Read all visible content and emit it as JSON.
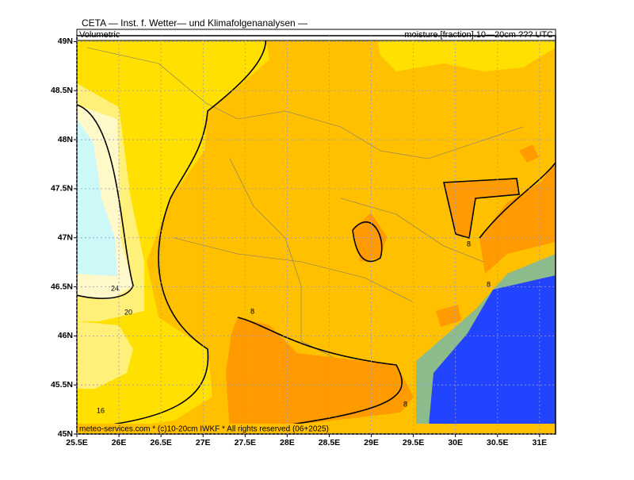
{
  "map": {
    "title": "CETA — Inst. f. Wetter— und Klimafolgenanalysen —",
    "left_label": "Volumetric",
    "right_label": "moisture.[fraction].10—20cm ??? UTC",
    "footer": "meteo-services.com * (c)10-20cm IWKF * All rights reserved (06+2025)",
    "xlim": [
      25.5,
      31.19
    ],
    "ylim": [
      45,
      49.06
    ],
    "lon_ticks": [
      {
        "value": 25.5,
        "label": "25.5E"
      },
      {
        "value": 26,
        "label": "26E"
      },
      {
        "value": 26.5,
        "label": "26.5E"
      },
      {
        "value": 27,
        "label": "27E"
      },
      {
        "value": 27.5,
        "label": "27.5E"
      },
      {
        "value": 28,
        "label": "28E"
      },
      {
        "value": 28.5,
        "label": "28.5E"
      },
      {
        "value": 29,
        "label": "29E"
      },
      {
        "value": 29.5,
        "label": "29.5E"
      },
      {
        "value": 30,
        "label": "30E"
      },
      {
        "value": 30.5,
        "label": "30.5E"
      },
      {
        "value": 31,
        "label": "31E"
      }
    ],
    "lat_ticks": [
      {
        "value": 45,
        "label": "45N"
      },
      {
        "value": 45.5,
        "label": "45.5N"
      },
      {
        "value": 46,
        "label": "46N"
      },
      {
        "value": 46.5,
        "label": "46.5N"
      },
      {
        "value": 47,
        "label": "47N"
      },
      {
        "value": 47.5,
        "label": "47.5N"
      },
      {
        "value": 48,
        "label": "48N"
      },
      {
        "value": 48.5,
        "label": "48.5N"
      },
      {
        "value": 49,
        "label": "49N"
      }
    ],
    "contour_labels": [
      "24",
      "20",
      "16",
      "8",
      "8",
      "8",
      "8"
    ]
  }
}
